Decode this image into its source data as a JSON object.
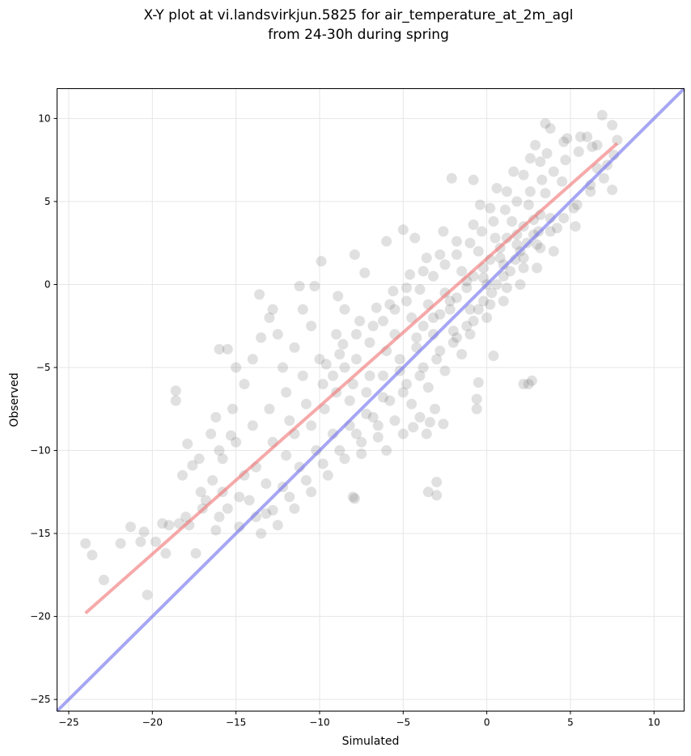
{
  "chart_data": {
    "type": "scatter",
    "title_lines": [
      "X-Y plot at vi.landsvirkjun.5825 for air_temperature_at_2m_agl",
      "from 24-30h during spring"
    ],
    "xlabel": "Simulated",
    "ylabel": "Observed",
    "xlim": [
      -25.7,
      11.8
    ],
    "ylim": [
      -25.7,
      11.8
    ],
    "xticks": [
      -25,
      -20,
      -15,
      -10,
      -5,
      0,
      5,
      10
    ],
    "yticks": [
      -25,
      -20,
      -15,
      -10,
      -5,
      0,
      5,
      10
    ],
    "xtick_labels": [
      "−25",
      "−20",
      "−15",
      "−10",
      "−5",
      "0",
      "5",
      "10"
    ],
    "ytick_labels": [
      "−25",
      "−20",
      "−15",
      "−10",
      "−5",
      "0",
      "5",
      "10"
    ],
    "grid": true,
    "point_color": "#404040",
    "points": [
      [
        -24.0,
        -15.6
      ],
      [
        -23.6,
        -16.3
      ],
      [
        -22.9,
        -17.8
      ],
      [
        -21.9,
        -15.6
      ],
      [
        -21.3,
        -14.6
      ],
      [
        -20.7,
        -15.5
      ],
      [
        -20.5,
        -14.9
      ],
      [
        -20.3,
        -18.7
      ],
      [
        -19.8,
        -15.5
      ],
      [
        -19.4,
        -14.4
      ],
      [
        -19.2,
        -16.2
      ],
      [
        -18.6,
        -6.4
      ],
      [
        -18.6,
        -7.0
      ],
      [
        -18.4,
        -14.4
      ],
      [
        -17.9,
        -9.6
      ],
      [
        -17.6,
        -10.9
      ],
      [
        -17.4,
        -16.2
      ],
      [
        -17.1,
        -12.5
      ],
      [
        -16.4,
        -11.8
      ],
      [
        -16.0,
        -3.9
      ],
      [
        -15.5,
        -3.9
      ],
      [
        -15.3,
        -9.1
      ],
      [
        -13.6,
        -0.6
      ],
      [
        -11.2,
        -0.1
      ],
      [
        -10.3,
        -0.1
      ],
      [
        -9.9,
        1.4
      ],
      [
        -8.9,
        -0.7
      ],
      [
        -7.9,
        1.8
      ],
      [
        -8.0,
        -12.8
      ],
      [
        -7.9,
        -12.9
      ],
      [
        -3.5,
        -12.5
      ],
      [
        -3.0,
        -12.7
      ],
      [
        -3.0,
        -11.9
      ],
      [
        -3.1,
        -7.5
      ],
      [
        -2.6,
        -8.4
      ],
      [
        -3.4,
        -8.3
      ],
      [
        -2.1,
        6.4
      ],
      [
        -0.8,
        6.3
      ],
      [
        -0.5,
        -5.9
      ],
      [
        -0.6,
        -6.9
      ],
      [
        -0.6,
        -7.5
      ],
      [
        0.4,
        -4.3
      ],
      [
        2.2,
        -6.0
      ],
      [
        2.5,
        -6.0
      ],
      [
        2.7,
        -5.8
      ],
      [
        5.3,
        3.5
      ],
      [
        6.9,
        10.2
      ],
      [
        7.5,
        9.6
      ],
      [
        7.5,
        5.7
      ],
      [
        3.5,
        9.7
      ],
      [
        3.8,
        9.4
      ],
      [
        4.8,
        8.8
      ],
      [
        2.9,
        8.4
      ],
      [
        6.0,
        8.9
      ],
      [
        7.8,
        8.7
      ],
      [
        -5.0,
        3.3
      ],
      [
        -4.3,
        2.8
      ],
      [
        -6.0,
        2.6
      ],
      [
        -7.3,
        0.7
      ],
      [
        -8.5,
        -1.5
      ],
      [
        -13.0,
        -2.0
      ],
      [
        -12.5,
        -3.0
      ],
      [
        -14.0,
        -4.5
      ],
      [
        -15.0,
        -5.0
      ],
      [
        -16.5,
        -9.0
      ],
      [
        -15.8,
        -10.5
      ],
      [
        -14.5,
        -11.5
      ],
      [
        -13.2,
        -12.0
      ],
      [
        -12.0,
        -10.3
      ],
      [
        -11.5,
        -9.0
      ],
      [
        -10.5,
        -8.5
      ],
      [
        -9.7,
        -7.5
      ],
      [
        -9.0,
        -6.5
      ],
      [
        -8.5,
        -5.0
      ],
      [
        -7.8,
        -4.5
      ],
      [
        -7.0,
        -3.5
      ],
      [
        -6.2,
        -2.2
      ],
      [
        -5.5,
        -1.5
      ],
      [
        -4.8,
        -1.0
      ],
      [
        -4.0,
        -0.3
      ],
      [
        -3.2,
        0.5
      ],
      [
        -2.5,
        1.2
      ],
      [
        -1.8,
        1.8
      ],
      [
        -1.0,
        2.5
      ],
      [
        -0.3,
        3.2
      ],
      [
        0.4,
        3.8
      ],
      [
        1.1,
        4.5
      ],
      [
        1.8,
        5.0
      ],
      [
        2.6,
        5.6
      ],
      [
        3.3,
        6.3
      ],
      [
        4.0,
        6.8
      ],
      [
        4.7,
        7.5
      ],
      [
        5.5,
        8.0
      ],
      [
        6.3,
        8.3
      ],
      [
        -2.0,
        -3.5
      ],
      [
        -1.2,
        -2.5
      ],
      [
        -0.5,
        -1.5
      ],
      [
        0.3,
        -0.5
      ],
      [
        1.0,
        0.5
      ],
      [
        1.7,
        1.5
      ],
      [
        2.4,
        2.5
      ],
      [
        3.1,
        3.2
      ],
      [
        -6.5,
        -8.5
      ],
      [
        -7.5,
        -9.5
      ],
      [
        -8.5,
        -10.5
      ],
      [
        -9.5,
        -11.5
      ],
      [
        -10.5,
        -12.5
      ],
      [
        -11.5,
        -13.5
      ],
      [
        -12.5,
        -14.5
      ],
      [
        -13.5,
        -15.0
      ],
      [
        -16.0,
        -14.0
      ],
      [
        -17.0,
        -13.5
      ],
      [
        -18.0,
        -14.0
      ],
      [
        -19.0,
        -14.5
      ],
      [
        -5.0,
        -6.5
      ],
      [
        -4.0,
        -5.5
      ],
      [
        -3.0,
        -4.5
      ],
      [
        -2.0,
        -2.8
      ],
      [
        -1.0,
        -1.5
      ],
      [
        0.0,
        0.0
      ],
      [
        1.0,
        1.2
      ],
      [
        2.0,
        2.0
      ],
      [
        -9.0,
        -3.0
      ],
      [
        -10.0,
        -4.5
      ],
      [
        -11.0,
        -5.5
      ],
      [
        -12.0,
        -6.5
      ],
      [
        -13.0,
        -7.5
      ],
      [
        -14.0,
        -8.5
      ],
      [
        -15.0,
        -9.5
      ],
      [
        -16.0,
        -10.0
      ],
      [
        -3.8,
        -2.5
      ],
      [
        -2.8,
        -1.8
      ],
      [
        -1.8,
        -0.8
      ],
      [
        -0.8,
        0.5
      ],
      [
        0.2,
        1.5
      ],
      [
        1.2,
        2.8
      ],
      [
        2.2,
        3.5
      ],
      [
        3.2,
        4.2
      ],
      [
        -6.0,
        -4.0
      ],
      [
        -7.0,
        -5.5
      ],
      [
        -8.0,
        -6.0
      ],
      [
        -5.5,
        -3.0
      ],
      [
        -4.5,
        -2.0
      ],
      [
        -3.5,
        -1.2
      ],
      [
        -2.5,
        -0.5
      ],
      [
        -1.5,
        0.8
      ],
      [
        -0.5,
        2.0
      ],
      [
        0.5,
        2.8
      ],
      [
        1.5,
        3.8
      ],
      [
        2.5,
        4.8
      ],
      [
        3.5,
        5.5
      ],
      [
        4.5,
        6.2
      ],
      [
        -10.5,
        -2.5
      ],
      [
        -11.5,
        -3.8
      ],
      [
        -12.2,
        -5.0
      ],
      [
        -9.2,
        -5.5
      ],
      [
        -8.2,
        -7.0
      ],
      [
        -7.2,
        -7.8
      ],
      [
        -6.2,
        -6.8
      ],
      [
        -5.2,
        -5.2
      ],
      [
        -4.2,
        -3.8
      ],
      [
        -3.2,
        -3.0
      ],
      [
        -2.2,
        -1.5
      ],
      [
        -1.2,
        0.2
      ],
      [
        -0.2,
        1.0
      ],
      [
        0.8,
        2.2
      ],
      [
        1.8,
        3.0
      ],
      [
        2.8,
        3.9
      ],
      [
        -14.8,
        -12.8
      ],
      [
        -15.8,
        -12.5
      ],
      [
        -13.8,
        -11.0
      ],
      [
        -12.8,
        -9.5
      ],
      [
        -11.8,
        -8.2
      ],
      [
        -10.8,
        -7.2
      ],
      [
        -9.8,
        -6.0
      ],
      [
        -8.8,
        -4.2
      ],
      [
        -7.8,
        -3.0
      ],
      [
        -6.8,
        -2.5
      ],
      [
        -5.8,
        -1.2
      ],
      [
        -4.8,
        -0.2
      ],
      [
        -3.8,
        0.8
      ],
      [
        -2.8,
        1.8
      ],
      [
        -1.8,
        2.6
      ],
      [
        -0.8,
        3.6
      ],
      [
        0.2,
        4.6
      ],
      [
        1.2,
        5.6
      ],
      [
        2.2,
        6.6
      ],
      [
        3.2,
        7.4
      ],
      [
        -1.0,
        -3.0
      ],
      [
        0.0,
        -2.0
      ],
      [
        1.0,
        -1.0
      ],
      [
        2.0,
        0.0
      ],
      [
        3.0,
        1.0
      ],
      [
        4.0,
        2.0
      ],
      [
        -17.8,
        -14.5
      ],
      [
        -16.8,
        -13.0
      ],
      [
        -15.5,
        -13.5
      ],
      [
        -14.2,
        -13.0
      ],
      [
        -13.2,
        -13.8
      ],
      [
        -12.2,
        -12.2
      ],
      [
        -11.2,
        -11.0
      ],
      [
        -10.2,
        -10.0
      ],
      [
        -9.2,
        -9.0
      ],
      [
        -8.2,
        -8.5
      ],
      [
        -7.2,
        -6.5
      ],
      [
        -6.2,
        -5.5
      ],
      [
        -5.2,
        -4.5
      ],
      [
        -4.2,
        -3.2
      ],
      [
        -3.2,
        -2.0
      ],
      [
        -2.2,
        -1.0
      ],
      [
        -1.2,
        -0.2
      ],
      [
        -0.2,
        0.4
      ],
      [
        0.8,
        1.6
      ],
      [
        1.8,
        2.4
      ],
      [
        2.8,
        3.0
      ],
      [
        3.8,
        4.0
      ],
      [
        -11.0,
        -1.5
      ],
      [
        -12.8,
        -1.5
      ],
      [
        -13.5,
        -3.2
      ],
      [
        -14.5,
        -6.0
      ],
      [
        -15.2,
        -7.5
      ],
      [
        -16.2,
        -8.0
      ],
      [
        -17.2,
        -10.5
      ],
      [
        -18.2,
        -11.5
      ],
      [
        -2.6,
        3.2
      ],
      [
        -3.6,
        1.6
      ],
      [
        -4.6,
        0.6
      ],
      [
        -5.6,
        -0.4
      ],
      [
        -6.6,
        -1.4
      ],
      [
        -7.6,
        -2.2
      ],
      [
        -8.6,
        -3.6
      ],
      [
        -9.6,
        -4.8
      ],
      [
        -0.4,
        4.8
      ],
      [
        0.6,
        5.8
      ],
      [
        1.6,
        6.8
      ],
      [
        2.6,
        7.6
      ],
      [
        3.6,
        7.9
      ],
      [
        4.6,
        8.6
      ],
      [
        5.6,
        8.9
      ],
      [
        6.6,
        8.4
      ],
      [
        7.2,
        7.2
      ],
      [
        6.2,
        6.0
      ],
      [
        5.2,
        4.6
      ],
      [
        4.2,
        3.4
      ],
      [
        3.2,
        2.2
      ],
      [
        2.2,
        1.0
      ],
      [
        1.2,
        -0.2
      ],
      [
        0.2,
        -1.2
      ],
      [
        -0.8,
        -2.2
      ],
      [
        -1.8,
        -3.2
      ],
      [
        -2.8,
        -4.0
      ],
      [
        -3.8,
        -5.0
      ],
      [
        -4.8,
        -6.0
      ],
      [
        -5.8,
        -7.0
      ],
      [
        -6.8,
        -8.0
      ],
      [
        -7.8,
        -9.0
      ],
      [
        -8.8,
        -10.0
      ],
      [
        -9.8,
        -10.8
      ],
      [
        -10.8,
        -11.8
      ],
      [
        -11.8,
        -12.8
      ],
      [
        -12.8,
        -13.6
      ],
      [
        -13.8,
        -14.0
      ],
      [
        -14.8,
        -14.6
      ],
      [
        -16.2,
        -14.8
      ],
      [
        -1.5,
        -4.2
      ],
      [
        -2.5,
        -5.2
      ],
      [
        -3.5,
        -6.2
      ],
      [
        -4.5,
        -7.2
      ],
      [
        -5.5,
        -8.2
      ],
      [
        -6.5,
        -9.2
      ],
      [
        -7.5,
        -10.2
      ],
      [
        -4.0,
        -8.0
      ],
      [
        -5.0,
        -9.0
      ],
      [
        -6.0,
        -10.0
      ],
      [
        -3.6,
        -9.0
      ],
      [
        -4.4,
        -8.6
      ],
      [
        -0.2,
        -1.0
      ],
      [
        0.6,
        0.0
      ],
      [
        1.4,
        0.8
      ],
      [
        2.2,
        1.6
      ],
      [
        3.0,
        2.4
      ],
      [
        3.8,
        3.2
      ],
      [
        4.6,
        4.0
      ],
      [
        5.4,
        4.8
      ],
      [
        6.2,
        5.6
      ],
      [
        7.0,
        6.4
      ],
      [
        7.6,
        7.8
      ],
      [
        6.6,
        7.0
      ]
    ],
    "red_line": {
      "x": [
        -24.0,
        7.8
      ],
      "y": [
        -19.8,
        8.5
      ],
      "color": "#f07070"
    },
    "blue_line": {
      "x": [
        -25.7,
        11.8
      ],
      "y": [
        -25.7,
        11.8
      ],
      "color": "#7777ee"
    }
  }
}
